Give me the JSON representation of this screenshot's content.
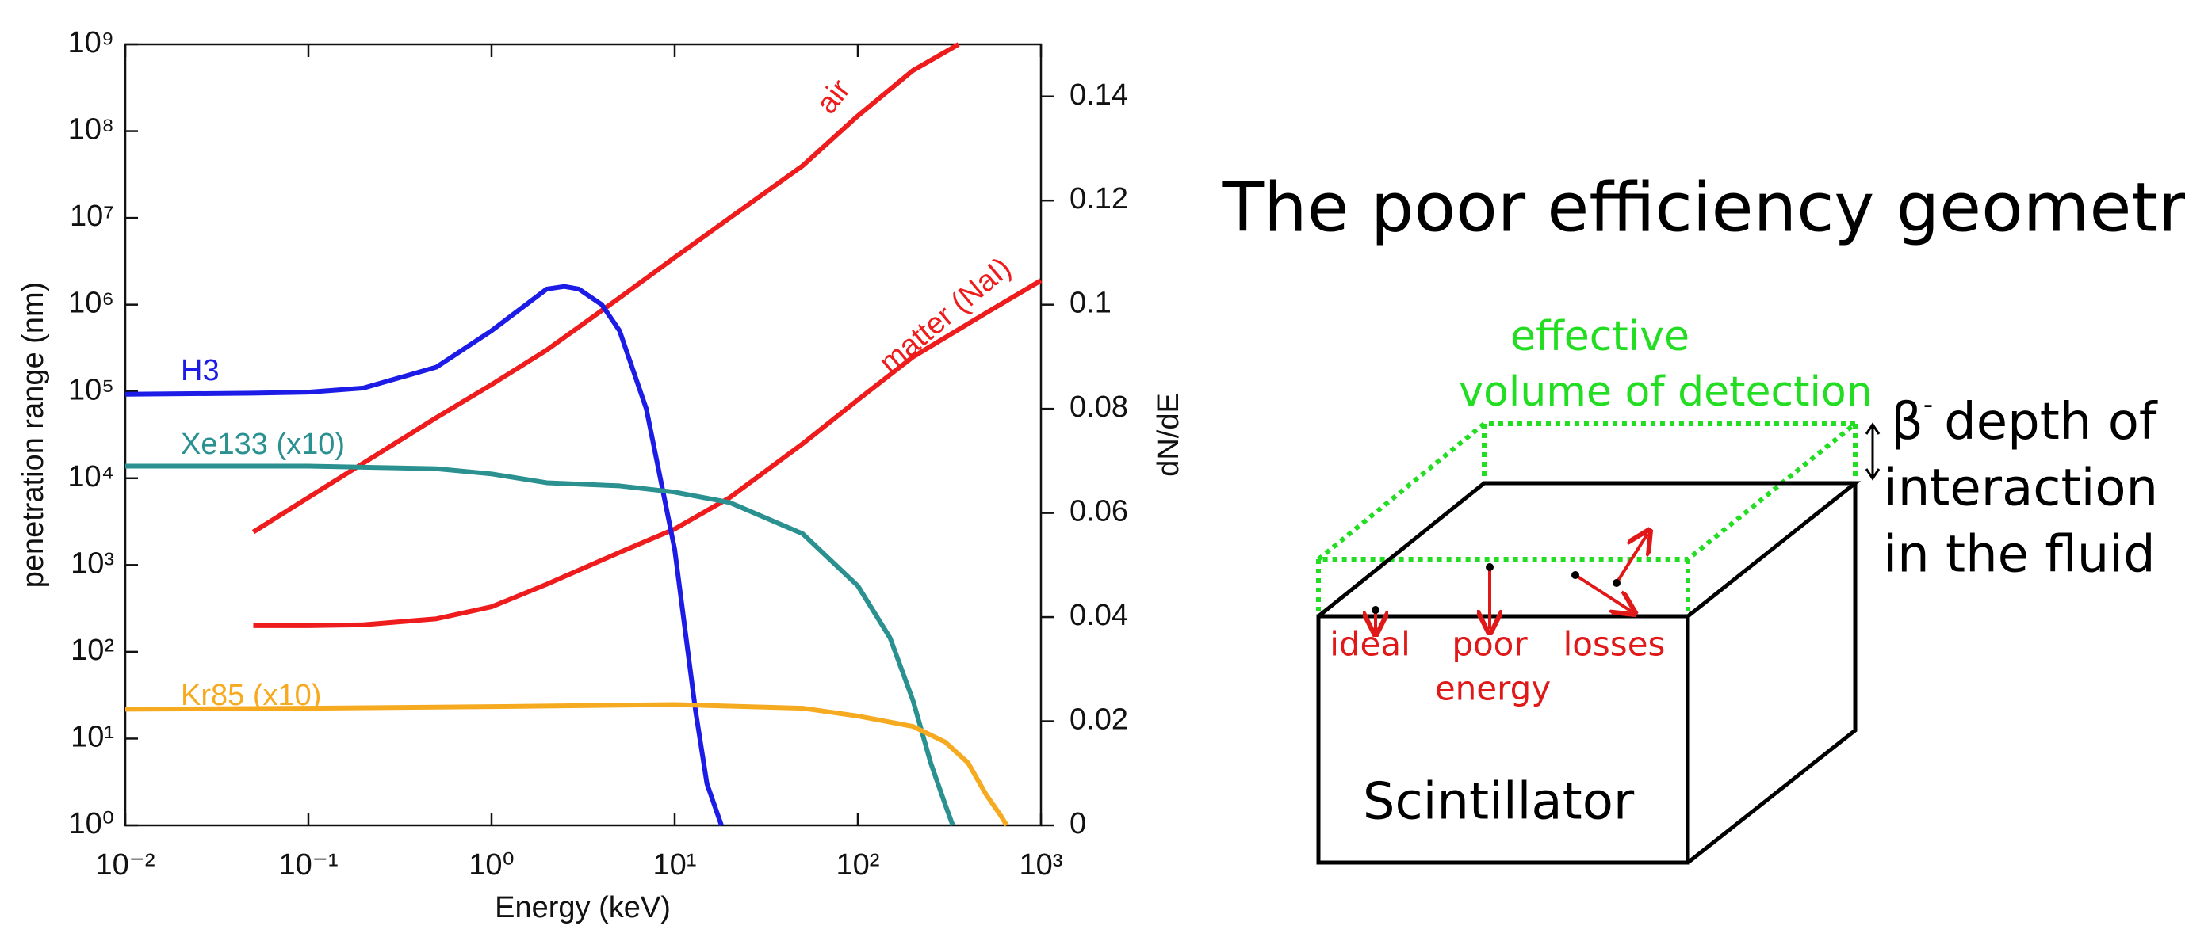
{
  "chart_data": {
    "type": "line",
    "xlabel": "Energy (keV)",
    "ylabel": "penetration range (nm)",
    "y2label": "dN/dE",
    "xscale": "log",
    "yscale": "log",
    "xlim": [
      0.01,
      1000
    ],
    "ylim": [
      1,
      1000000000
    ],
    "y2lim": [
      0,
      0.15
    ],
    "xticks": [
      {
        "value": 0.01,
        "label": "10⁻²"
      },
      {
        "value": 0.1,
        "label": "10⁻¹"
      },
      {
        "value": 1,
        "label": "10⁰"
      },
      {
        "value": 10,
        "label": "10¹"
      },
      {
        "value": 100,
        "label": "10²"
      },
      {
        "value": 1000,
        "label": "10³"
      }
    ],
    "yticks": [
      {
        "value": 1,
        "label": "10⁰"
      },
      {
        "value": 10,
        "label": "10¹"
      },
      {
        "value": 100,
        "label": "10²"
      },
      {
        "value": 1000,
        "label": "10³"
      },
      {
        "value": 10000,
        "label": "10⁴"
      },
      {
        "value": 100000,
        "label": "10⁵"
      },
      {
        "value": 1000000,
        "label": "10⁶"
      },
      {
        "value": 10000000,
        "label": "10⁷"
      },
      {
        "value": 100000000,
        "label": "10⁸"
      },
      {
        "value": 1000000000,
        "label": "10⁹"
      }
    ],
    "y2ticks": [
      0,
      0.02,
      0.04,
      0.06,
      0.08,
      0.1,
      0.12,
      0.14
    ],
    "series": [
      {
        "name": "air",
        "color": "#ee1c1c",
        "axis": "y",
        "x": [
          0.05,
          0.1,
          0.2,
          0.5,
          1,
          2,
          5,
          10,
          20,
          50,
          100,
          200,
          355
        ],
        "values": [
          2400,
          6000,
          15000,
          50000,
          120000,
          300000,
          1200000,
          3500000,
          10000000,
          40000000,
          150000000,
          500000000,
          1000000000
        ]
      },
      {
        "name": "matter (NaI)",
        "color": "#ee1c1c",
        "axis": "y",
        "x": [
          0.05,
          0.1,
          0.2,
          0.5,
          1,
          2,
          5,
          10,
          20,
          50,
          100,
          200,
          500,
          1000
        ],
        "values": [
          200,
          200,
          205,
          240,
          330,
          600,
          1400,
          2600,
          6000,
          25000,
          80000,
          250000,
          800000,
          1900000
        ]
      },
      {
        "name": "H3",
        "color": "#1c1ce6",
        "axis": "y2",
        "x": [
          0.01,
          0.05,
          0.1,
          0.2,
          0.5,
          1,
          2,
          2.5,
          3,
          4,
          5,
          7,
          10,
          13,
          15,
          18
        ],
        "values": [
          0.0828,
          0.083,
          0.0832,
          0.084,
          0.088,
          0.095,
          0.103,
          0.1035,
          0.103,
          0.1,
          0.095,
          0.08,
          0.053,
          0.022,
          0.008,
          0
        ]
      },
      {
        "name": "Xe133 (x10)",
        "color": "#2a9090",
        "axis": "y2",
        "x": [
          0.01,
          0.1,
          0.5,
          1,
          2,
          5,
          10,
          20,
          50,
          100,
          150,
          200,
          250,
          300,
          330
        ],
        "values": [
          0.069,
          0.069,
          0.0685,
          0.0675,
          0.0658,
          0.0652,
          0.064,
          0.062,
          0.056,
          0.046,
          0.036,
          0.024,
          0.012,
          0.004,
          0
        ]
      },
      {
        "name": "Kr85 (x10)",
        "color": "#f5aa20",
        "axis": "y2",
        "x": [
          0.01,
          0.1,
          1,
          10,
          50,
          100,
          200,
          300,
          400,
          500,
          600,
          650
        ],
        "values": [
          0.0223,
          0.0225,
          0.0228,
          0.0232,
          0.0225,
          0.021,
          0.019,
          0.016,
          0.012,
          0.006,
          0.002,
          0
        ]
      }
    ]
  },
  "diagram": {
    "title": "The poor efficiency geometry",
    "effective_volume": [
      "effective",
      "volume of detection"
    ],
    "depth": {
      "symbol": "β",
      "superscript": "-",
      "lines": [
        "depth of",
        "interaction",
        "in the fluid"
      ]
    },
    "events": {
      "ideal": "ideal",
      "poor": [
        "poor",
        "energy"
      ],
      "losses": "losses"
    },
    "block": "Scintillator"
  }
}
